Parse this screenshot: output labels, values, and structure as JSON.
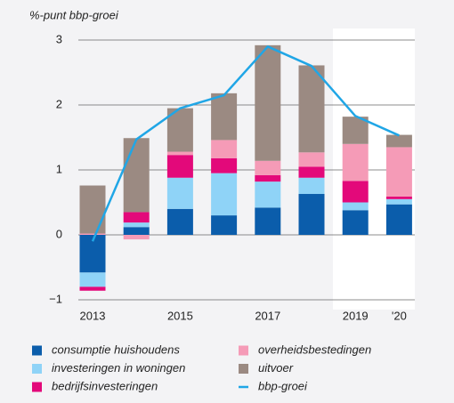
{
  "chart_data": {
    "type": "bar",
    "stacked": true,
    "y_label": "%-punt bbp-groei",
    "categories": [
      "2013",
      null,
      "2015",
      null,
      "2017",
      null,
      "2019",
      "'20"
    ],
    "series": [
      {
        "name": "consumptie huishoudens",
        "color": "#0b5dab",
        "values": [
          -0.58,
          0.12,
          0.4,
          0.3,
          0.42,
          0.63,
          0.38,
          0.47
        ]
      },
      {
        "name": "investeringen in woningen",
        "color": "#8fd3f7",
        "values": [
          -0.22,
          0.07,
          0.48,
          0.65,
          0.4,
          0.25,
          0.12,
          0.08
        ]
      },
      {
        "name": "bedrijfsinvesteringen",
        "color": "#e3097a",
        "values": [
          -0.06,
          0.16,
          0.35,
          0.23,
          0.1,
          0.17,
          0.33,
          0.04
        ]
      },
      {
        "name": "overheidsbestedingen",
        "color": "#f59bb7",
        "values": [
          0.02,
          -0.07,
          0.05,
          0.28,
          0.22,
          0.22,
          0.57,
          0.76
        ]
      },
      {
        "name": "uitvoer",
        "color": "#9b8a82",
        "values": [
          0.74,
          1.14,
          0.67,
          0.72,
          1.78,
          1.34,
          0.42,
          0.19
        ]
      },
      {
        "name": "bbp-groei",
        "type": "line",
        "color": "#20a6e6",
        "values": [
          -0.1,
          1.47,
          1.95,
          2.15,
          2.9,
          2.6,
          1.83,
          1.53
        ]
      }
    ],
    "ylim": [
      -1,
      3
    ],
    "yticks": [
      {
        "value": -1,
        "label": "−1"
      },
      0,
      1,
      2,
      3
    ],
    "grid": true
  }
}
